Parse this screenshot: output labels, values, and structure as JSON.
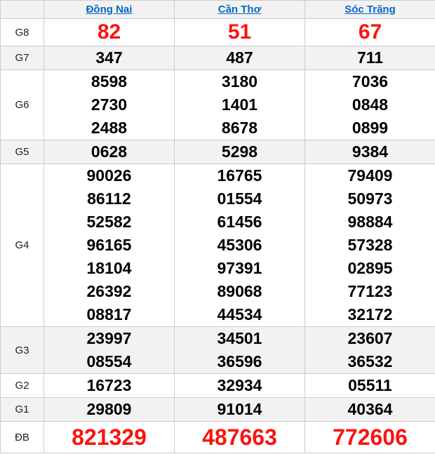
{
  "palette": {
    "red": "#fa1410",
    "link_blue": "#0a66c6",
    "row_alt_bg": "#f2f2f2",
    "border": "#cccccc",
    "number_black": "#000000"
  },
  "table": {
    "corner_label": "",
    "columns": [
      "Đồng Nai",
      "Cần Thơ",
      "Sóc Trăng"
    ],
    "rows": [
      {
        "label": "G8",
        "style": "red-large",
        "values": [
          [
            "82"
          ],
          [
            "51"
          ],
          [
            "67"
          ]
        ]
      },
      {
        "label": "G7",
        "style": "",
        "values": [
          [
            "347"
          ],
          [
            "487"
          ],
          [
            "711"
          ]
        ]
      },
      {
        "label": "G6",
        "style": "",
        "values": [
          [
            "8598",
            "2730",
            "2488"
          ],
          [
            "3180",
            "1401",
            "8678"
          ],
          [
            "7036",
            "0848",
            "0899"
          ]
        ]
      },
      {
        "label": "G5",
        "style": "",
        "values": [
          [
            "0628"
          ],
          [
            "5298"
          ],
          [
            "9384"
          ]
        ]
      },
      {
        "label": "G4",
        "style": "",
        "values": [
          [
            "90026",
            "86112",
            "52582",
            "96165",
            "18104",
            "26392",
            "08817"
          ],
          [
            "16765",
            "01554",
            "61456",
            "45306",
            "97391",
            "89068",
            "44534"
          ],
          [
            "79409",
            "50973",
            "98884",
            "57328",
            "02895",
            "77123",
            "32172"
          ]
        ]
      },
      {
        "label": "G3",
        "style": "",
        "values": [
          [
            "23997",
            "08554"
          ],
          [
            "34501",
            "36596"
          ],
          [
            "23607",
            "36532"
          ]
        ]
      },
      {
        "label": "G2",
        "style": "",
        "values": [
          [
            "16723"
          ],
          [
            "32934"
          ],
          [
            "05511"
          ]
        ]
      },
      {
        "label": "G1",
        "style": "",
        "values": [
          [
            "29809"
          ],
          [
            "91014"
          ],
          [
            "40364"
          ]
        ]
      },
      {
        "label": "ĐB",
        "style": "red-xlarge",
        "values": [
          [
            "821329"
          ],
          [
            "487663"
          ],
          [
            "772606"
          ]
        ]
      }
    ]
  }
}
